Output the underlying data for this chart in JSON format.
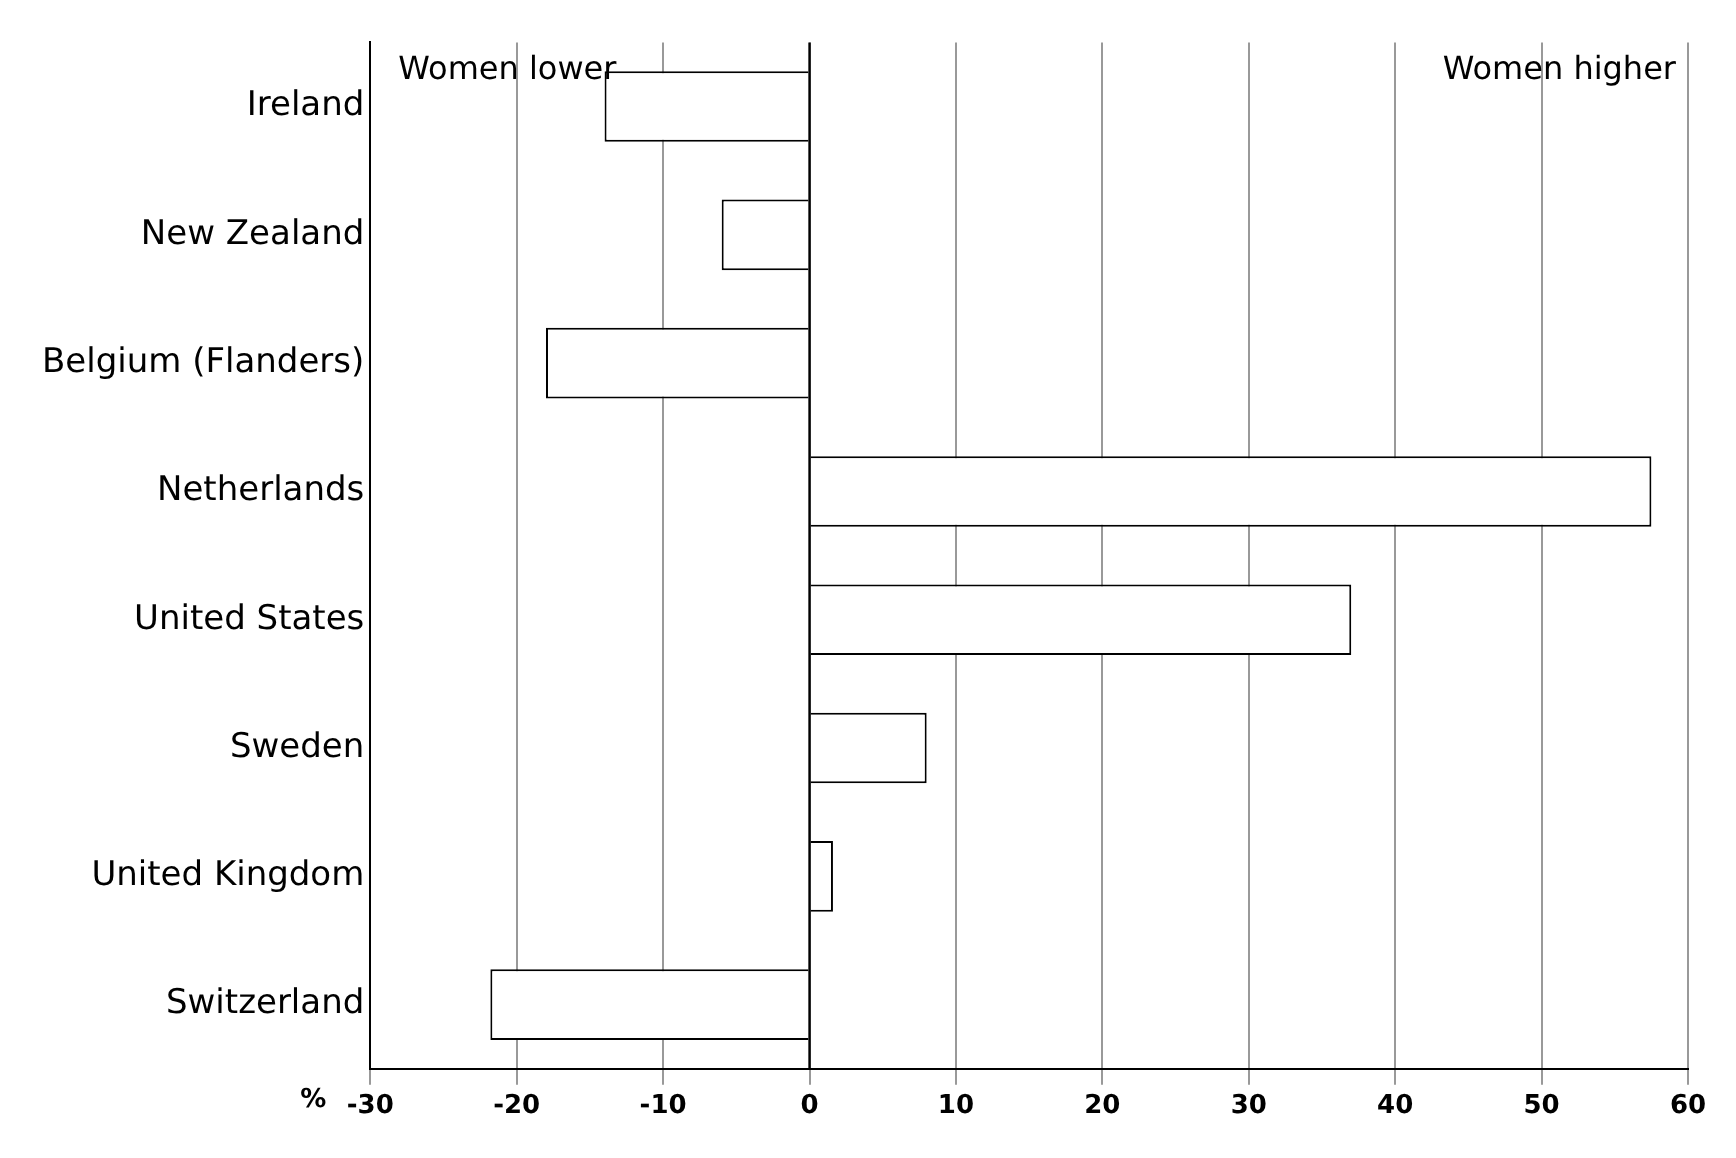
{
  "chart_data": {
    "type": "bar",
    "orientation": "horizontal",
    "categories": [
      "Ireland",
      "New Zealand",
      "Belgium (Flanders)",
      "Netherlands",
      "United States",
      "Sweden",
      "United Kingdom",
      "Switzerland"
    ],
    "values": [
      -14,
      -6,
      -18,
      57.5,
      37,
      8,
      1.6,
      -21.8
    ],
    "color": "#ffffff",
    "xlim": [
      -30,
      60
    ],
    "xticks": [
      -30,
      -20,
      -10,
      0,
      10,
      20,
      30,
      40,
      50,
      60
    ],
    "xlabel": "%",
    "grid": "x",
    "legend": false,
    "annotations": [
      "Women lower",
      "Women higher"
    ]
  }
}
